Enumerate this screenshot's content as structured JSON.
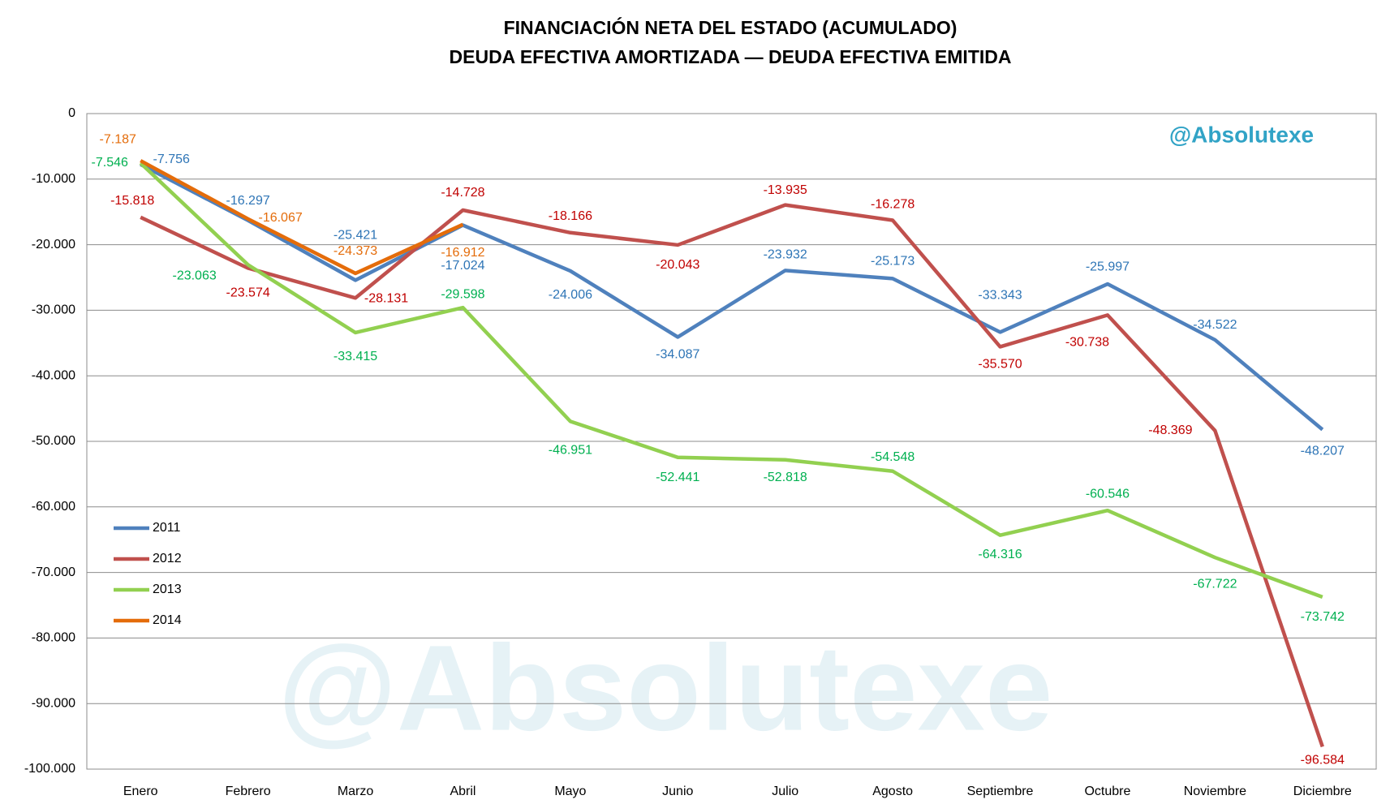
{
  "chart_data": {
    "type": "line",
    "title": "FINANCIACIÓN NETA DEL ESTADO (ACUMULADO)",
    "subtitle": "DEUDA EFECTIVA AMORTIZADA — DEUDA EFECTIVA EMITIDA",
    "annotation": "@Absolutexe",
    "categories": [
      "Enero",
      "Febrero",
      "Marzo",
      "Abril",
      "Mayo",
      "Junio",
      "Julio",
      "Agosto",
      "Septiembre",
      "Octubre",
      "Noviembre",
      "Diciembre"
    ],
    "series": [
      {
        "name": "2011",
        "color": "#4f81bd",
        "label_color": "#2e75b6",
        "values": [
          -7756,
          -16297,
          -25421,
          -17024,
          -24006,
          -34087,
          -23932,
          -25173,
          -33343,
          -25997,
          -34522,
          -48207
        ],
        "value_labels": [
          "-7.756",
          "-16.297",
          "-25.421",
          "-17.024",
          "-24.006",
          "-34.087",
          "-23.932",
          "-25.173",
          "-33.343",
          "-25.997",
          "-34.522",
          "-48.207"
        ]
      },
      {
        "name": "2012",
        "color": "#c0504d",
        "label_color": "#c00000",
        "values": [
          -15818,
          -23574,
          -28131,
          -14728,
          -18166,
          -20043,
          -13935,
          -16278,
          -35570,
          -30738,
          -48369,
          -96584
        ],
        "value_labels": [
          "-15.818",
          "-23.574",
          "-28.131",
          "-14.728",
          "-18.166",
          "-20.043",
          "-13.935",
          "-16.278",
          "-35.570",
          "-30.738",
          "-48.369",
          "-96.584"
        ]
      },
      {
        "name": "2013",
        "color": "#92d050",
        "label_color": "#00b050",
        "values": [
          -7546,
          -23063,
          -33415,
          -29598,
          -46951,
          -52441,
          -52818,
          -54548,
          -64316,
          -60546,
          -67722,
          -73742
        ],
        "value_labels": [
          "-7.546",
          "-23.063",
          "-33.415",
          "-29.598",
          "-46.951",
          "-52.441",
          "-52.818",
          "-54.548",
          "-64.316",
          "-60.546",
          "-67.722",
          "-73.742"
        ]
      },
      {
        "name": "2014",
        "color": "#e46c0a",
        "label_color": "#e46c0a",
        "values": [
          -7187,
          -16067,
          -24373,
          -16912,
          null,
          null,
          null,
          null,
          null,
          null,
          null,
          null
        ],
        "value_labels": [
          "-7.187",
          "-16.067",
          "-24.373",
          "-16.912",
          null,
          null,
          null,
          null,
          null,
          null,
          null,
          null
        ]
      }
    ],
    "ylim": [
      -100000,
      0
    ],
    "yticks": [
      0,
      {
        "value": -10000,
        "label": "-10.000"
      },
      {
        "value": -20000,
        "label": "-20.000"
      },
      {
        "value": -30000,
        "label": "-30.000"
      },
      {
        "value": -40000,
        "label": "-40.000"
      },
      {
        "value": -50000,
        "label": "-50.000"
      },
      {
        "value": -60000,
        "label": "-60.000"
      },
      {
        "value": -70000,
        "label": "-70.000"
      },
      {
        "value": -80000,
        "label": "-80.000"
      },
      {
        "value": -90000,
        "label": "-90.000"
      },
      {
        "value": -100000,
        "label": "-100.000"
      }
    ],
    "grid": true,
    "legend": "left"
  }
}
